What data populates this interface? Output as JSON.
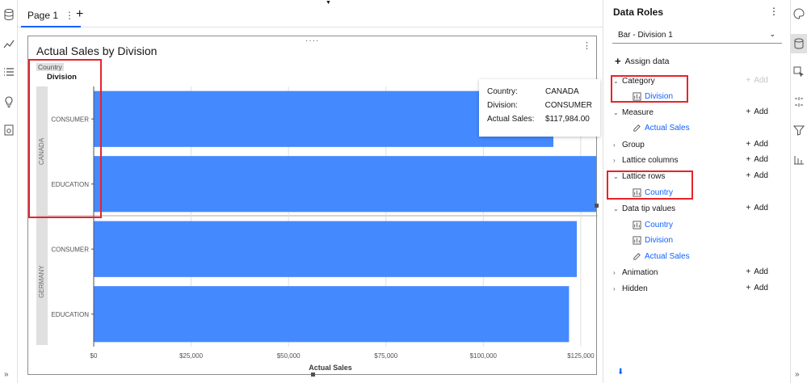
{
  "tabs": [
    {
      "label": "Page 1"
    }
  ],
  "widget": {
    "title": "Actual Sales by Division"
  },
  "chart_headers": {
    "lattice_label": "Country",
    "category_label": "Division"
  },
  "chart_data": {
    "type": "bar",
    "orientation": "horizontal",
    "title": "Actual Sales by Division",
    "xlabel": "Actual Sales",
    "xlim": [
      0,
      130000
    ],
    "x_ticks": [
      "$0",
      "$25,000",
      "$50,000",
      "$75,000",
      "$100,000",
      "$125,000"
    ],
    "x_tick_values": [
      0,
      25000,
      50000,
      75000,
      100000,
      125000
    ],
    "grid": true,
    "lattice_rows": [
      {
        "name": "CANADA",
        "categories": [
          "CONSUMER",
          "EDUCATION"
        ],
        "values": [
          117984,
          129000
        ]
      },
      {
        "name": "GERMANY",
        "categories": [
          "CONSUMER",
          "EDUCATION"
        ],
        "values": [
          124000,
          122000
        ]
      }
    ],
    "bar_color": "#4589ff"
  },
  "tooltip": {
    "rows": [
      {
        "key": "Country:",
        "value": "CANADA"
      },
      {
        "key": "Division:",
        "value": "CONSUMER"
      },
      {
        "key": "Actual Sales:",
        "value": "$117,984.00"
      }
    ]
  },
  "panel": {
    "title": "Data Roles",
    "viz_type": "Bar - Division 1",
    "assign_label": "Assign data",
    "add_label": "Add",
    "roles": [
      {
        "label": "Category",
        "expanded": true,
        "add_enabled": false,
        "items": [
          {
            "label": "Division",
            "icon": "category-icon"
          }
        ]
      },
      {
        "label": "Measure",
        "expanded": true,
        "add_enabled": true,
        "items": [
          {
            "label": "Actual Sales",
            "icon": "measure-icon"
          }
        ]
      },
      {
        "label": "Group",
        "expanded": false,
        "add_enabled": true,
        "items": []
      },
      {
        "label": "Lattice columns",
        "expanded": false,
        "add_enabled": true,
        "items": []
      },
      {
        "label": "Lattice rows",
        "expanded": true,
        "add_enabled": true,
        "items": [
          {
            "label": "Country",
            "icon": "category-icon"
          }
        ]
      },
      {
        "label": "Data tip values",
        "expanded": true,
        "add_enabled": true,
        "items": [
          {
            "label": "Country",
            "icon": "category-icon"
          },
          {
            "label": "Division",
            "icon": "category-icon"
          },
          {
            "label": "Actual Sales",
            "icon": "measure-icon"
          }
        ]
      },
      {
        "label": "Animation",
        "expanded": false,
        "add_enabled": true,
        "items": []
      },
      {
        "label": "Hidden",
        "expanded": false,
        "add_enabled": true,
        "items": []
      }
    ]
  },
  "colors": {
    "accent": "#0f62fe",
    "highlight": "#e8232a"
  }
}
